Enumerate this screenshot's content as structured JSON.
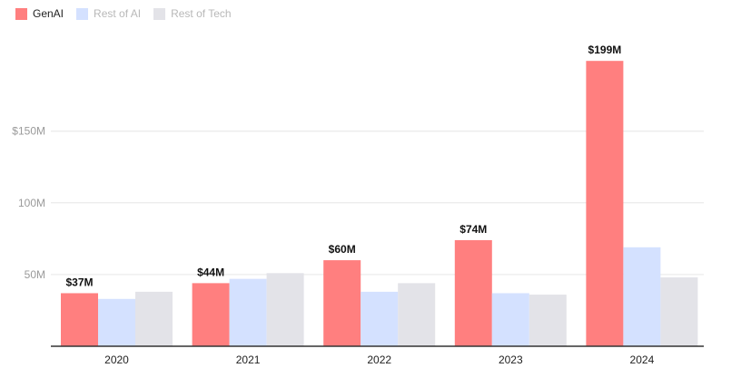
{
  "legend": [
    {
      "label": "GenAI",
      "color": "#ff7f7f"
    },
    {
      "label": "Rest of AI",
      "color": "#d4e1ff"
    },
    {
      "label": "Rest of Tech",
      "color": "#e3e3e8"
    }
  ],
  "chart_data": {
    "type": "bar",
    "categories": [
      "2020",
      "2021",
      "2022",
      "2023",
      "2024"
    ],
    "series": [
      {
        "name": "GenAI",
        "values": [
          37,
          44,
          60,
          74,
          199
        ],
        "color": "#ff7f7f",
        "labels": [
          "$37M",
          "$44M",
          "$60M",
          "$74M",
          "$199M"
        ]
      },
      {
        "name": "Rest of AI",
        "values": [
          33,
          47,
          38,
          37,
          69
        ],
        "color": "#d4e1ff"
      },
      {
        "name": "Rest of Tech",
        "values": [
          38,
          51,
          44,
          36,
          48
        ],
        "color": "#e3e3e8"
      }
    ],
    "yticks": [
      {
        "value": 50,
        "label": "50M"
      },
      {
        "value": 100,
        "label": "100M"
      },
      {
        "value": 150,
        "label": "$150M"
      }
    ],
    "ylim": [
      0,
      200
    ],
    "grid": true,
    "legend_position": "top-left",
    "title": "",
    "xlabel": "",
    "ylabel": ""
  }
}
